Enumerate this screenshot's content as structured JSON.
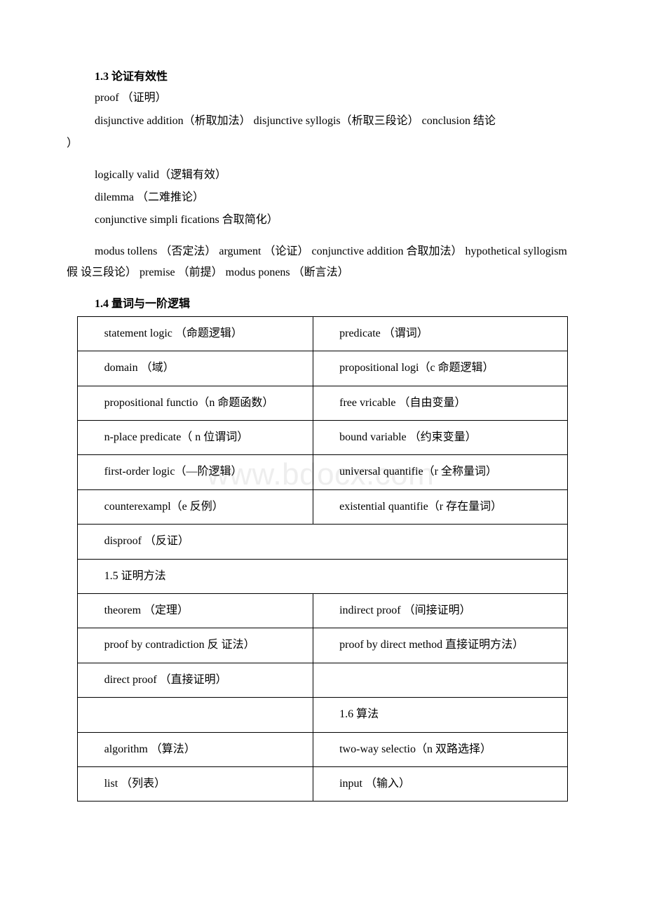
{
  "section13": {
    "title": "1.3 论证有效性",
    "lines": [
      "proof （证明）",
      "disjunctive addition（析取加法） disjunctive syllogis（析取三段论） conclusion 结论",
      "）",
      "logically valid（逻辑有效）",
      "dilemma （二难推论）",
      "conjunctive simpli fications 合取简化）",
      "modus tollens （否定法） argument （论证） conjunctive addition 合取加法） hypothetical syllogism 假 设三段论） premise （前提） modus ponens （断言法）"
    ]
  },
  "section14": {
    "title": "1.4 量词与一阶逻辑"
  },
  "table": {
    "rows": [
      {
        "left": "statement logic （命题逻辑）",
        "right": "predicate （谓词）"
      },
      {
        "left": "domain （域）",
        "right": "propositional logi（c 命题逻辑）"
      },
      {
        "left": "propositional functio（n 命题函数）",
        "right": "free vricable （自由变量）"
      },
      {
        "left": "n-place predicate（ n 位谓词）",
        "right": "bound variable （约束变量）"
      },
      {
        "left": "first-order logic（—阶逻辑）",
        "right": "universal quantifie（r 全称量词）"
      },
      {
        "left": "counterexampl（e 反例）",
        "right": "existential quantifie（r 存在量词）"
      },
      {
        "left": "disproof （反证）",
        "right": ""
      },
      {
        "left": "1.5 证明方法",
        "right": ""
      },
      {
        "left": "theorem （定理）",
        "right": "indirect proof （间接证明）"
      },
      {
        "left": "proof by contradiction 反 证法）",
        "right": "proof by direct method 直接证明方法）"
      },
      {
        "left": "direct proof （直接证明）",
        "right": ""
      },
      {
        "left": "",
        "right": "1.6 算法"
      },
      {
        "left": "algorithm （算法）",
        "right": "two-way selectio（n 双路选择）"
      },
      {
        "left": "list （列表）",
        "right": "input （输入）"
      }
    ]
  },
  "watermark": "www.bdocx.com"
}
